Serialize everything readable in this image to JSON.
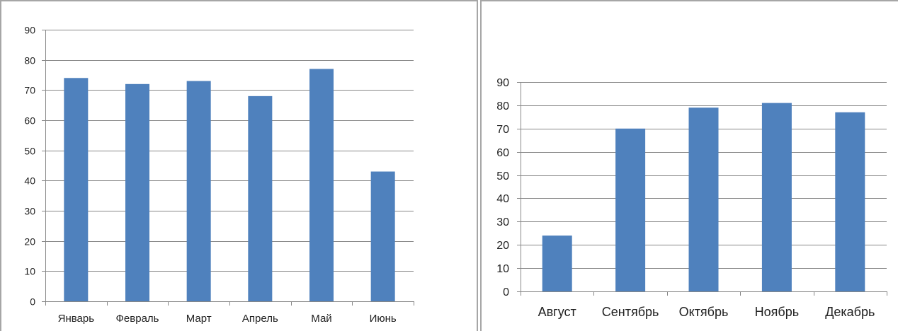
{
  "colors": {
    "bar": "#4f81bd",
    "grid": "#878787",
    "frame": "#a6a6a6"
  },
  "chart_data": [
    {
      "type": "bar",
      "title": "",
      "xlabel": "",
      "ylabel": "",
      "categories": [
        "Январь",
        "Февраль",
        "Март",
        "Апрель",
        "Май",
        "Июнь"
      ],
      "values": [
        74,
        72,
        73,
        68,
        77,
        43
      ],
      "ylim": [
        0,
        90
      ],
      "yticks": [
        "0",
        "10",
        "20",
        "30",
        "40",
        "50",
        "60",
        "70",
        "80",
        "90"
      ],
      "grid": true,
      "legend": "none"
    },
    {
      "type": "bar",
      "title": "",
      "xlabel": "",
      "ylabel": "",
      "categories": [
        "Август",
        "Сентябрь",
        "Октябрь",
        "Ноябрь",
        "Декабрь"
      ],
      "values": [
        24,
        70,
        79,
        81,
        77
      ],
      "ylim": [
        0,
        90
      ],
      "yticks": [
        "0",
        "10",
        "20",
        "30",
        "40",
        "50",
        "60",
        "70",
        "80",
        "90"
      ],
      "grid": true,
      "legend": "none"
    }
  ]
}
